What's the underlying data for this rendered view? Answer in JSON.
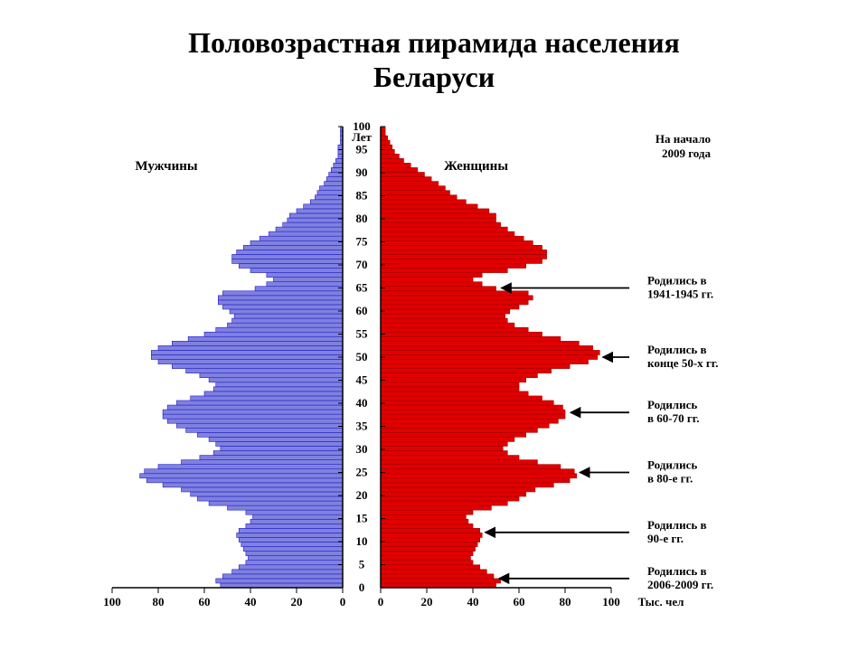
{
  "title_line1": "Половозрастная пирамида населения",
  "title_line2": "Беларуси",
  "chart": {
    "type": "population-pyramid",
    "male_label": "Мужчины",
    "female_label": "Женщины",
    "top_right_line1": "На начало",
    "top_right_line2": "2009 года",
    "y_axis_unit": "Лет",
    "x_axis_unit": "Тыс. чел",
    "xlim": [
      0,
      100
    ],
    "xtick_step": 20,
    "ylim": [
      0,
      100
    ],
    "ytick_step": 5,
    "background_color": "#ffffff",
    "axis_color": "#000000",
    "male_fill": "#8080e0",
    "male_stroke": "#2020c0",
    "female_fill": "#e00000",
    "female_stroke": "#a00000",
    "tick_fontsize": 13,
    "label_fontsize": 13,
    "side_label_fontsize": 15,
    "annot_fontsize": 13,
    "arrow_color": "#000000",
    "xticks": [
      100,
      80,
      60,
      40,
      20,
      0
    ],
    "yticks": [
      0,
      5,
      10,
      15,
      20,
      25,
      30,
      35,
      40,
      45,
      50,
      55,
      60,
      65,
      70,
      75,
      80,
      85,
      90,
      95,
      100
    ],
    "male_values": [
      53,
      55,
      52,
      48,
      45,
      42,
      41,
      42,
      43,
      44,
      45,
      46,
      45,
      42,
      40,
      39,
      42,
      50,
      58,
      63,
      66,
      70,
      78,
      85,
      88,
      86,
      80,
      70,
      62,
      56,
      53,
      55,
      58,
      63,
      68,
      72,
      76,
      78,
      78,
      76,
      72,
      66,
      60,
      56,
      55,
      58,
      62,
      68,
      74,
      80,
      83,
      83,
      80,
      74,
      67,
      60,
      55,
      50,
      48,
      47,
      49,
      52,
      54,
      54,
      52,
      38,
      33,
      30,
      33,
      40,
      45,
      48,
      48,
      46,
      43,
      40,
      36,
      32,
      29,
      26,
      24,
      23,
      20,
      17,
      14,
      12,
      11,
      10,
      8,
      7,
      6,
      5,
      4,
      3,
      2,
      2,
      2,
      1,
      1,
      1,
      1
    ],
    "female_values": [
      50,
      52,
      49,
      46,
      43,
      40,
      39,
      40,
      41,
      42,
      43,
      44,
      43,
      40,
      38,
      37,
      40,
      48,
      55,
      60,
      63,
      67,
      75,
      82,
      85,
      84,
      78,
      68,
      60,
      55,
      53,
      55,
      58,
      63,
      68,
      73,
      77,
      80,
      80,
      79,
      75,
      70,
      64,
      60,
      60,
      63,
      68,
      74,
      82,
      90,
      94,
      95,
      92,
      86,
      78,
      70,
      64,
      58,
      55,
      54,
      56,
      60,
      64,
      66,
      64,
      50,
      44,
      40,
      44,
      55,
      63,
      70,
      72,
      72,
      70,
      66,
      62,
      58,
      55,
      52,
      50,
      50,
      47,
      42,
      37,
      33,
      30,
      28,
      25,
      22,
      19,
      16,
      13,
      10,
      8,
      6,
      5,
      4,
      3,
      2,
      2
    ],
    "annotations": [
      {
        "label_lines": [
          "Родились в",
          "1941-1945 гг."
        ],
        "age": 65,
        "arrow_from_x": 105
      },
      {
        "label_lines": [
          "Родились в",
          "конце 50-х гг."
        ],
        "age": 50,
        "arrow_from_x": 105
      },
      {
        "label_lines": [
          "Родились",
          "в 60-70 гг."
        ],
        "age": 38,
        "arrow_from_x": 105
      },
      {
        "label_lines": [
          "Родились",
          "в 80-е гг."
        ],
        "age": 25,
        "arrow_from_x": 105
      },
      {
        "label_lines": [
          "Родились в",
          "90-е гг."
        ],
        "age": 12,
        "arrow_from_x": 105
      },
      {
        "label_lines": [
          "Родились в",
          "2006-2009 гг."
        ],
        "age": 2,
        "arrow_from_x": 105
      }
    ]
  }
}
